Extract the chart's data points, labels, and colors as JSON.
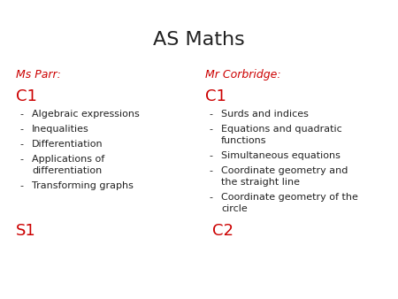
{
  "title": "AS Maths",
  "title_fontsize": 16,
  "title_color": "#222222",
  "background_color": "#ffffff",
  "left_name": "Ms Parr:",
  "left_name_color": "#cc0000",
  "left_name_style": "italic",
  "left_c1_label": "C1",
  "left_c1_color": "#cc0000",
  "left_items": [
    "Algebraic expressions",
    "Inequalities",
    "Differentiation",
    "Applications of\ndifferentiation",
    "Transforming graphs"
  ],
  "left_s1_label": "S1",
  "left_s1_color": "#cc0000",
  "right_name": "Mr Corbridge:",
  "right_name_color": "#cc0000",
  "right_name_style": "italic",
  "right_c1_label": "C1",
  "right_c1_color": "#cc0000",
  "right_items": [
    "Surds and indices",
    "Equations and quadratic\nfunctions",
    "Simultaneous equations",
    "Coordinate geometry and\nthe straight line",
    "Coordinate geometry of the\ncircle"
  ],
  "right_c2_label": "C2",
  "right_c2_color": "#cc0000",
  "body_fontsize": 8,
  "body_color": "#222222",
  "label_fontsize": 13,
  "section_fontsize": 9,
  "bullet_fontsize": 8
}
